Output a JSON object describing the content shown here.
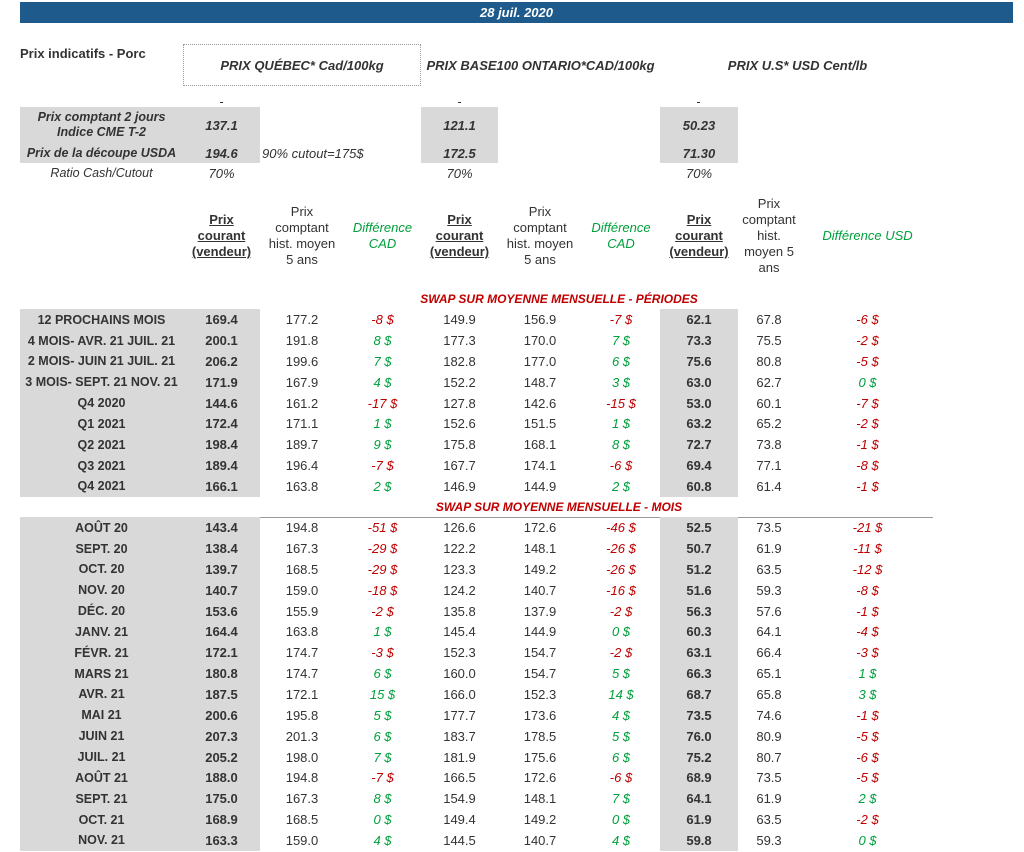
{
  "header": {
    "date": "28 juil. 2020"
  },
  "intro": {
    "title": "Prix indicatifs - Porc",
    "markets": [
      "PRIX QUÉBEC* Cad/100kg",
      "PRIX BASE100 ONTARIO*CAD/100kg",
      "PRIX U.S* USD Cent/lb"
    ],
    "dashes": [
      "-",
      "-",
      "-"
    ]
  },
  "indicators": [
    {
      "label": [
        "Prix comptant 2 jours",
        "Indice CME T-2"
      ],
      "quebec": "137.1",
      "ontario": "121.1",
      "us": "50.23"
    },
    {
      "label": [
        "Prix de la découpe USDA"
      ],
      "quebec": "194.6",
      "note": "90% cutout=175$",
      "ontario": "172.5",
      "us": "71.30"
    },
    {
      "label": [
        "Ratio Cash/Cutout"
      ],
      "quebec": "70%",
      "ontario": "70%",
      "us": "70%"
    }
  ],
  "columns": [
    [
      "Prix",
      "courant",
      "(vendeur)"
    ],
    [
      "Prix",
      "comptant",
      "hist. moyen",
      "5 ans"
    ],
    [
      "Différence",
      "CAD"
    ],
    [
      "Prix",
      "courant",
      "(vendeur)"
    ],
    [
      "Prix",
      "comptant",
      "hist. moyen",
      "5 ans"
    ],
    [
      "Différence",
      "CAD"
    ],
    [
      "Prix",
      "courant",
      "(vendeur)"
    ],
    [
      "Prix",
      "comptant",
      "hist.",
      "moyen 5",
      "ans"
    ],
    [
      "Différence USD"
    ]
  ],
  "sections": [
    {
      "title": "SWAP SUR MOYENNE MENSUELLE - PÉRIODES",
      "rows": [
        [
          "12 PROCHAINS MOIS",
          "169.4",
          "177.2",
          "-8 $",
          "149.9",
          "156.9",
          "-7 $",
          "62.1",
          "67.8",
          "-6 $"
        ],
        [
          "4 MOIS- AVR. 21 JUIL. 21",
          "200.1",
          "191.8",
          "8 $",
          "177.3",
          "170.0",
          "7 $",
          "73.3",
          "75.5",
          "-2 $"
        ],
        [
          "2 MOIS- JUIN 21 JUIL. 21",
          "206.2",
          "199.6",
          "7 $",
          "182.8",
          "177.0",
          "6 $",
          "75.6",
          "80.8",
          "-5 $"
        ],
        [
          "3 MOIS- SEPT. 21 NOV. 21",
          "171.9",
          "167.9",
          "4 $",
          "152.2",
          "148.7",
          "3 $",
          "63.0",
          "62.7",
          "0 $"
        ],
        [
          "Q4 2020",
          "144.6",
          "161.2",
          "-17 $",
          "127.8",
          "142.6",
          "-15 $",
          "53.0",
          "60.1",
          "-7 $"
        ],
        [
          "Q1 2021",
          "172.4",
          "171.1",
          "1 $",
          "152.6",
          "151.5",
          "1 $",
          "63.2",
          "65.2",
          "-2 $"
        ],
        [
          "Q2 2021",
          "198.4",
          "189.7",
          "9 $",
          "175.8",
          "168.1",
          "8 $",
          "72.7",
          "73.8",
          "-1 $"
        ],
        [
          "Q3 2021",
          "189.4",
          "196.4",
          "-7 $",
          "167.7",
          "174.1",
          "-6 $",
          "69.4",
          "77.1",
          "-8 $"
        ],
        [
          "Q4 2021",
          "166.1",
          "163.8",
          "2 $",
          "146.9",
          "144.9",
          "2 $",
          "60.8",
          "61.4",
          "-1 $"
        ]
      ]
    },
    {
      "title": "SWAP SUR MOYENNE MENSUELLE - MOIS",
      "rows": [
        [
          "AOÛT 20",
          "143.4",
          "194.8",
          "-51 $",
          "126.6",
          "172.6",
          "-46 $",
          "52.5",
          "73.5",
          "-21 $"
        ],
        [
          "SEPT. 20",
          "138.4",
          "167.3",
          "-29 $",
          "122.2",
          "148.1",
          "-26 $",
          "50.7",
          "61.9",
          "-11 $"
        ],
        [
          "OCT. 20",
          "139.7",
          "168.5",
          "-29 $",
          "123.3",
          "149.2",
          "-26 $",
          "51.2",
          "63.5",
          "-12 $"
        ],
        [
          "NOV. 20",
          "140.7",
          "159.0",
          "-18 $",
          "124.2",
          "140.7",
          "-16 $",
          "51.6",
          "59.3",
          "-8 $"
        ],
        [
          "DÉC. 20",
          "153.6",
          "155.9",
          "-2 $",
          "135.8",
          "137.9",
          "-2 $",
          "56.3",
          "57.6",
          "-1 $"
        ],
        [
          "JANV. 21",
          "164.4",
          "163.8",
          "1 $",
          "145.4",
          "144.9",
          "0 $",
          "60.3",
          "64.1",
          "-4 $"
        ],
        [
          "FÉVR. 21",
          "172.1",
          "174.7",
          "-3 $",
          "152.3",
          "154.7",
          "-2 $",
          "63.1",
          "66.4",
          "-3 $"
        ],
        [
          "MARS 21",
          "180.8",
          "174.7",
          "6 $",
          "160.0",
          "154.7",
          "5 $",
          "66.3",
          "65.1",
          "1 $"
        ],
        [
          "AVR. 21",
          "187.5",
          "172.1",
          "15 $",
          "166.0",
          "152.3",
          "14 $",
          "68.7",
          "65.8",
          "3 $"
        ],
        [
          "MAI 21",
          "200.6",
          "195.8",
          "5 $",
          "177.7",
          "173.6",
          "4 $",
          "73.5",
          "74.6",
          "-1 $"
        ],
        [
          "JUIN 21",
          "207.3",
          "201.3",
          "6 $",
          "183.7",
          "178.5",
          "5 $",
          "76.0",
          "80.9",
          "-5 $"
        ],
        [
          "JUIL. 21",
          "205.2",
          "198.0",
          "7 $",
          "181.9",
          "175.6",
          "6 $",
          "75.2",
          "80.7",
          "-6 $"
        ],
        [
          "AOÛT 21",
          "188.0",
          "194.8",
          "-7 $",
          "166.5",
          "172.6",
          "-6 $",
          "68.9",
          "73.5",
          "-5 $"
        ],
        [
          "SEPT. 21",
          "175.0",
          "167.3",
          "8 $",
          "154.9",
          "148.1",
          "7 $",
          "64.1",
          "61.9",
          "2 $"
        ],
        [
          "OCT. 21",
          "168.9",
          "168.5",
          "0 $",
          "149.4",
          "149.2",
          "0 $",
          "61.9",
          "63.5",
          "-2 $"
        ],
        [
          "NOV. 21",
          "163.3",
          "159.0",
          "4 $",
          "144.5",
          "140.7",
          "4 $",
          "59.8",
          "59.3",
          "0 $"
        ]
      ]
    }
  ]
}
